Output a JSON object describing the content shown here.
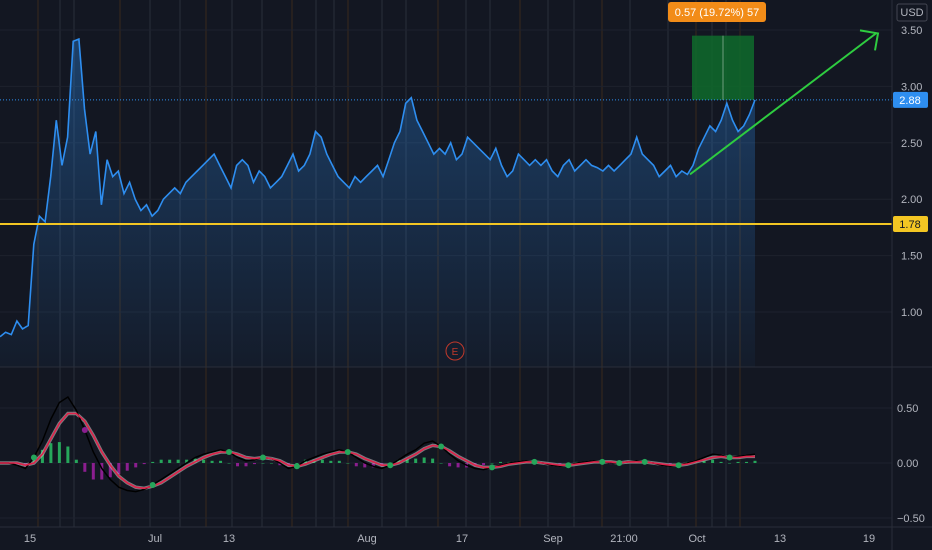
{
  "currency": "USD",
  "measure_label": "0.57 (19.72%) 57",
  "earnings_marker": "E",
  "colors": {
    "background": "#131722",
    "price_line": "#2e8ef0",
    "support_line": "#f3c623",
    "trend_arrow": "#2ecc40",
    "macd_line": "#000000",
    "signal_line": "#e0224a",
    "hist_up": "#26a65b",
    "hist_down": "#8b1e8f",
    "measure_box": "#0f6b2c",
    "measure_label_bg": "#f28c18"
  },
  "chart_data": [
    {
      "type": "line",
      "panel": "price",
      "ylim": [
        0.5,
        3.6
      ],
      "yticks": [
        1.0,
        1.5,
        2.0,
        2.5,
        3.0,
        3.5
      ],
      "ytick_labels": [
        "1.00",
        "1.50",
        "2.00",
        "2.50",
        "3.00",
        "3.50"
      ],
      "xticks": [
        "15",
        "Jul",
        "13",
        "Aug",
        "17",
        "Sep",
        "21:00",
        "Oct",
        "13",
        "19"
      ],
      "support_level": {
        "value": 1.78,
        "label": "1.78"
      },
      "last_price": {
        "value": 2.88,
        "label": "2.88"
      },
      "series": [
        {
          "values": [
            0.78,
            0.82,
            0.8,
            0.92,
            0.85,
            0.88,
            1.6,
            1.85,
            1.8,
            2.2,
            2.7,
            2.3,
            2.55,
            3.4,
            3.42,
            2.8,
            2.4,
            2.6,
            1.95,
            2.35,
            2.2,
            2.25,
            2.05,
            2.15,
            2.0,
            1.9,
            1.95,
            1.85,
            1.9,
            2.0,
            2.05,
            2.1,
            2.05,
            2.15,
            2.2,
            2.25,
            2.3,
            2.35,
            2.4,
            2.3,
            2.2,
            2.1,
            2.3,
            2.35,
            2.3,
            2.15,
            2.25,
            2.2,
            2.1,
            2.15,
            2.2,
            2.3,
            2.4,
            2.25,
            2.3,
            2.4,
            2.6,
            2.55,
            2.4,
            2.3,
            2.2,
            2.15,
            2.1,
            2.2,
            2.15,
            2.2,
            2.25,
            2.3,
            2.2,
            2.35,
            2.5,
            2.6,
            2.85,
            2.9,
            2.7,
            2.6,
            2.5,
            2.4,
            2.45,
            2.4,
            2.5,
            2.35,
            2.4,
            2.55,
            2.5,
            2.45,
            2.4,
            2.35,
            2.45,
            2.3,
            2.2,
            2.25,
            2.4,
            2.35,
            2.3,
            2.35,
            2.3,
            2.35,
            2.25,
            2.2,
            2.3,
            2.35,
            2.25,
            2.3,
            2.35,
            2.3,
            2.28,
            2.25,
            2.3,
            2.25,
            2.3,
            2.35,
            2.4,
            2.55,
            2.4,
            2.35,
            2.3,
            2.2,
            2.25,
            2.3,
            2.2,
            2.25,
            2.22,
            2.3,
            2.45,
            2.55,
            2.65,
            2.6,
            2.7,
            2.85,
            2.7,
            2.6,
            2.65,
            2.75,
            2.88
          ]
        }
      ]
    },
    {
      "type": "line",
      "panel": "macd",
      "ylim": [
        -0.55,
        0.72
      ],
      "yticks": [
        0.5,
        0.0,
        -0.5
      ],
      "ytick_labels": [
        "0.50",
        "0.00",
        "−0.50"
      ],
      "series": [
        {
          "name": "",
          "values": [
            0.0,
            0.0,
            -0.02,
            -0.05,
            0.05,
            0.2,
            0.4,
            0.55,
            0.6,
            0.48,
            0.3,
            0.1,
            -0.05,
            -0.15,
            -0.22,
            -0.25,
            -0.26,
            -0.24,
            -0.2,
            -0.15,
            -0.1,
            -0.05,
            0.0,
            0.05,
            0.08,
            0.1,
            0.12,
            0.1,
            0.05,
            0.02,
            0.03,
            0.05,
            0.04,
            0.0,
            -0.05,
            -0.03,
            0.02,
            0.05,
            0.08,
            0.1,
            0.12,
            0.1,
            0.05,
            0.0,
            -0.03,
            -0.05,
            -0.02,
            0.03,
            0.08,
            0.12,
            0.18,
            0.2,
            0.15,
            0.08,
            0.02,
            -0.02,
            -0.05,
            -0.06,
            -0.04,
            -0.02,
            0.0,
            0.01,
            0.02,
            0.01,
            0.0,
            -0.02,
            -0.03,
            -0.02,
            0.0,
            0.01,
            0.02,
            0.01,
            0.0,
            0.0,
            0.01,
            0.02,
            0.01,
            0.0,
            -0.02,
            -0.03,
            -0.02,
            0.0,
            0.02,
            0.05,
            0.08,
            0.07,
            0.05,
            0.06,
            0.07,
            0.08
          ]
        },
        {
          "name": "",
          "values": [
            0.0,
            0.0,
            0.0,
            -0.02,
            0.0,
            0.08,
            0.22,
            0.36,
            0.45,
            0.45,
            0.38,
            0.25,
            0.1,
            -0.02,
            -0.12,
            -0.18,
            -0.22,
            -0.23,
            -0.21,
            -0.18,
            -0.13,
            -0.08,
            -0.03,
            0.01,
            0.05,
            0.08,
            0.1,
            0.1,
            0.08,
            0.05,
            0.04,
            0.05,
            0.04,
            0.02,
            -0.02,
            -0.03,
            -0.01,
            0.02,
            0.05,
            0.08,
            0.1,
            0.1,
            0.08,
            0.04,
            0.01,
            -0.02,
            -0.02,
            0.0,
            0.04,
            0.08,
            0.13,
            0.16,
            0.15,
            0.11,
            0.06,
            0.02,
            -0.02,
            -0.04,
            -0.04,
            -0.03,
            -0.01,
            0.0,
            0.01,
            0.01,
            0.0,
            -0.01,
            -0.02,
            -0.02,
            -0.01,
            0.0,
            0.01,
            0.01,
            0.01,
            0.0,
            0.01,
            0.01,
            0.01,
            0.0,
            -0.01,
            -0.02,
            -0.02,
            -0.01,
            0.01,
            0.03,
            0.05,
            0.06,
            0.05,
            0.05,
            0.06,
            0.06
          ]
        }
      ]
    }
  ]
}
